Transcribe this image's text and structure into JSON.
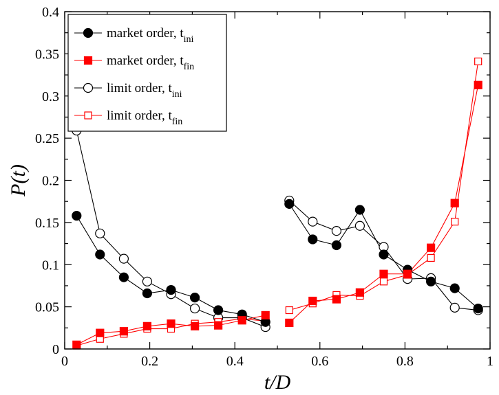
{
  "chart_data": {
    "type": "line",
    "title": "",
    "xlabel": "t/D",
    "ylabel": "P(t)",
    "xlim": [
      0,
      1
    ],
    "ylim": [
      0,
      0.4
    ],
    "x_ticks": [
      "0",
      "0.2",
      "0.4",
      "0.6",
      "0.8",
      "1"
    ],
    "y_ticks": [
      "0",
      "0.05",
      "0.1",
      "0.15",
      "0.2",
      "0.25",
      "0.3",
      "0.35",
      "0.4"
    ],
    "grid": false,
    "legend_position": "top-left",
    "series": [
      {
        "name": "market order, t",
        "subscript": "ini",
        "color": "#000000",
        "marker": "circle",
        "filled": true,
        "segments": [
          [
            [
              0.028,
              0.158
            ],
            [
              0.083,
              0.112
            ],
            [
              0.139,
              0.085
            ],
            [
              0.194,
              0.066
            ],
            [
              0.25,
              0.07
            ],
            [
              0.306,
              0.061
            ],
            [
              0.361,
              0.046
            ],
            [
              0.417,
              0.041
            ],
            [
              0.472,
              0.032
            ]
          ],
          [
            [
              0.528,
              0.172
            ],
            [
              0.583,
              0.13
            ],
            [
              0.639,
              0.123
            ],
            [
              0.694,
              0.165
            ],
            [
              0.75,
              0.112
            ],
            [
              0.806,
              0.094
            ],
            [
              0.861,
              0.08
            ],
            [
              0.917,
              0.072
            ],
            [
              0.972,
              0.048
            ]
          ]
        ]
      },
      {
        "name": "market order, t",
        "subscript": "fin",
        "color": "#ff0000",
        "marker": "square",
        "filled": true,
        "segments": [
          [
            [
              0.028,
              0.005
            ],
            [
              0.083,
              0.019
            ],
            [
              0.139,
              0.021
            ],
            [
              0.194,
              0.027
            ],
            [
              0.25,
              0.03
            ],
            [
              0.306,
              0.027
            ],
            [
              0.361,
              0.028
            ],
            [
              0.417,
              0.034
            ],
            [
              0.472,
              0.04
            ]
          ],
          [
            [
              0.528,
              0.031
            ],
            [
              0.583,
              0.057
            ],
            [
              0.639,
              0.059
            ],
            [
              0.694,
              0.067
            ],
            [
              0.75,
              0.089
            ],
            [
              0.806,
              0.089
            ],
            [
              0.861,
              0.12
            ],
            [
              0.917,
              0.173
            ],
            [
              0.972,
              0.313
            ]
          ]
        ]
      },
      {
        "name": "limit order, t",
        "subscript": "ini",
        "color": "#000000",
        "marker": "circle",
        "filled": false,
        "segments": [
          [
            [
              0.028,
              0.259
            ],
            [
              0.083,
              0.137
            ],
            [
              0.139,
              0.107
            ],
            [
              0.194,
              0.08
            ],
            [
              0.25,
              0.065
            ],
            [
              0.306,
              0.048
            ],
            [
              0.361,
              0.037
            ],
            [
              0.417,
              0.037
            ],
            [
              0.472,
              0.026
            ]
          ],
          [
            [
              0.528,
              0.176
            ],
            [
              0.583,
              0.151
            ],
            [
              0.639,
              0.14
            ],
            [
              0.694,
              0.146
            ],
            [
              0.75,
              0.121
            ],
            [
              0.806,
              0.083
            ],
            [
              0.861,
              0.084
            ],
            [
              0.917,
              0.049
            ],
            [
              0.972,
              0.046
            ]
          ]
        ]
      },
      {
        "name": "limit order, t",
        "subscript": "fin",
        "color": "#ff0000",
        "marker": "square",
        "filled": false,
        "segments": [
          [
            [
              0.028,
              0.004
            ],
            [
              0.083,
              0.012
            ],
            [
              0.139,
              0.018
            ],
            [
              0.194,
              0.024
            ],
            [
              0.25,
              0.024
            ],
            [
              0.306,
              0.03
            ],
            [
              0.361,
              0.032
            ],
            [
              0.417,
              0.036
            ],
            [
              0.472,
              0.033
            ]
          ],
          [
            [
              0.528,
              0.046
            ],
            [
              0.583,
              0.054
            ],
            [
              0.639,
              0.064
            ],
            [
              0.694,
              0.063
            ],
            [
              0.75,
              0.08
            ],
            [
              0.806,
              0.088
            ],
            [
              0.861,
              0.108
            ],
            [
              0.917,
              0.151
            ],
            [
              0.972,
              0.341
            ]
          ]
        ]
      }
    ]
  }
}
